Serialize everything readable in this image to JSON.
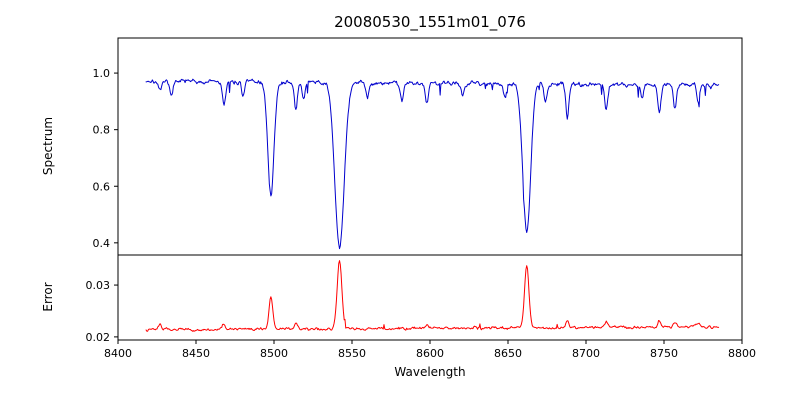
{
  "chart_data": {
    "type": "line",
    "title": "20080530_1551m01_076",
    "xlabel": "Wavelength",
    "xlim": [
      8400,
      8800
    ],
    "x_ticks": [
      8400,
      8450,
      8500,
      8550,
      8600,
      8650,
      8700,
      8750,
      8800
    ],
    "x_tick_labels": [
      "8400",
      "8450",
      "8500",
      "8550",
      "8600",
      "8650",
      "8700",
      "8750",
      "8800"
    ],
    "x_range_data": [
      8418,
      8785
    ],
    "sample_step": 0.5,
    "grid": false,
    "legend": "none",
    "noise_seed": 7,
    "panels": [
      {
        "name": "spectrum",
        "ylabel": "Spectrum",
        "ylim": [
          0.357,
          1.124
        ],
        "y_ticks": [
          0.4,
          0.6,
          0.8,
          1.0
        ],
        "y_tick_labels": [
          "0.4",
          "0.6",
          "0.8",
          "1.0"
        ],
        "color": "#0000cd",
        "baseline": 0.972,
        "baseline_slope": -4e-05,
        "noise_amplitude": 0.013,
        "spike_prob": 0.015,
        "spike_max": 0.05,
        "spike_sign": -1,
        "features": [
          {
            "center": 8498,
            "amplitude": -0.4,
            "sigma": 2.0,
            "label": "absorption line 8498, min ~0.57"
          },
          {
            "center": 8542,
            "amplitude": -0.585,
            "sigma": 3.0,
            "label": "absorption line 8542, min ~0.39"
          },
          {
            "center": 8662,
            "amplitude": -0.53,
            "sigma": 2.5,
            "label": "absorption line 8662, min ~0.44"
          }
        ],
        "minor_features": [
          {
            "center": 8427,
            "amplitude": -0.04,
            "sigma": 1.0
          },
          {
            "center": 8434,
            "amplitude": -0.05,
            "sigma": 1.0
          },
          {
            "center": 8468,
            "amplitude": -0.09,
            "sigma": 1.0
          },
          {
            "center": 8480,
            "amplitude": -0.05,
            "sigma": 0.9
          },
          {
            "center": 8514,
            "amplitude": -0.1,
            "sigma": 1.0
          },
          {
            "center": 8519,
            "amplitude": -0.06,
            "sigma": 0.9
          },
          {
            "center": 8560,
            "amplitude": -0.05,
            "sigma": 0.9
          },
          {
            "center": 8582,
            "amplitude": -0.06,
            "sigma": 1.0
          },
          {
            "center": 8598,
            "amplitude": -0.07,
            "sigma": 1.0
          },
          {
            "center": 8621,
            "amplitude": -0.04,
            "sigma": 0.9
          },
          {
            "center": 8648,
            "amplitude": -0.05,
            "sigma": 0.9
          },
          {
            "center": 8674,
            "amplitude": -0.06,
            "sigma": 1.0
          },
          {
            "center": 8688,
            "amplitude": -0.12,
            "sigma": 1.0
          },
          {
            "center": 8713,
            "amplitude": -0.09,
            "sigma": 1.0
          },
          {
            "center": 8736,
            "amplitude": -0.05,
            "sigma": 0.9
          },
          {
            "center": 8747,
            "amplitude": -0.1,
            "sigma": 1.0
          },
          {
            "center": 8757,
            "amplitude": -0.08,
            "sigma": 1.0
          },
          {
            "center": 8772,
            "amplitude": -0.06,
            "sigma": 0.9
          }
        ]
      },
      {
        "name": "error",
        "ylabel": "Error",
        "ylim": [
          0.0194,
          0.0358
        ],
        "y_ticks": [
          0.02,
          0.03
        ],
        "y_tick_labels": [
          "0.02",
          "0.03"
        ],
        "color": "#ff0000",
        "baseline": 0.0214,
        "baseline_slope": 1.5e-06,
        "noise_amplitude": 0.0004,
        "spike_prob": 0.01,
        "spike_max": 0.0012,
        "spike_sign": 1,
        "features": [
          {
            "center": 8498,
            "amplitude": 0.0062,
            "sigma": 1.2,
            "label": "error peak 8498, max ~0.028"
          },
          {
            "center": 8542,
            "amplitude": 0.0132,
            "sigma": 1.5,
            "label": "error peak 8542, max ~0.035"
          },
          {
            "center": 8662,
            "amplitude": 0.0122,
            "sigma": 1.4,
            "label": "error peak 8662, max ~0.034"
          }
        ],
        "minor_features": [
          {
            "center": 8427,
            "amplitude": 0.0012,
            "sigma": 1.0
          },
          {
            "center": 8468,
            "amplitude": 0.001,
            "sigma": 1.0
          },
          {
            "center": 8514,
            "amplitude": 0.0012,
            "sigma": 1.0
          },
          {
            "center": 8598,
            "amplitude": 0.0008,
            "sigma": 1.0
          },
          {
            "center": 8688,
            "amplitude": 0.0015,
            "sigma": 1.0
          },
          {
            "center": 8713,
            "amplitude": 0.001,
            "sigma": 1.0
          },
          {
            "center": 8747,
            "amplitude": 0.0012,
            "sigma": 1.0
          },
          {
            "center": 8757,
            "amplitude": 0.001,
            "sigma": 1.0
          },
          {
            "center": 8772,
            "amplitude": 0.0008,
            "sigma": 1.0
          }
        ]
      }
    ]
  }
}
